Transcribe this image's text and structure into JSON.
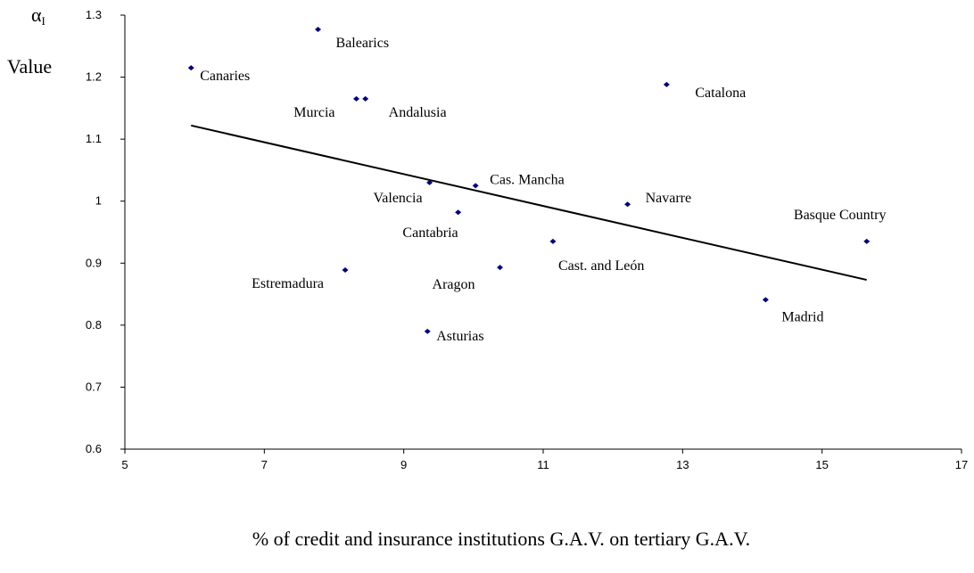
{
  "chart_data": {
    "type": "scatter",
    "y_label_symbol": "α",
    "y_label_subscript": "I",
    "ylabel": "Value",
    "xlabel": "% of credit and insurance institutions G.A.V. on tertiary G.A.V.",
    "color": "#000080",
    "xlim": [
      5,
      17
    ],
    "xticks": [
      5,
      7,
      9,
      11,
      13,
      15,
      17
    ],
    "ylim": [
      0.6,
      1.3
    ],
    "yticks": [
      0.6,
      0.7,
      0.8,
      0.9,
      1,
      1.1,
      1.2,
      1.3
    ],
    "points": [
      {
        "label": "Canaries",
        "x": 5.95,
        "y": 1.215
      },
      {
        "label": "Balearics",
        "x": 7.77,
        "y": 1.277
      },
      {
        "label": "Murcia",
        "x": 8.32,
        "y": 1.165
      },
      {
        "label": "Andalusia",
        "x": 8.45,
        "y": 1.165
      },
      {
        "label": "Catalona",
        "x": 12.77,
        "y": 1.188
      },
      {
        "label": "Valencia",
        "x": 9.37,
        "y": 1.03
      },
      {
        "label": "Cas. Mancha",
        "x": 10.03,
        "y": 1.025
      },
      {
        "label": "Cantabria",
        "x": 9.78,
        "y": 0.982
      },
      {
        "label": "Navarre",
        "x": 12.21,
        "y": 0.995
      },
      {
        "label": "Basque Country",
        "x": 15.64,
        "y": 0.935
      },
      {
        "label": "Cast. and León",
        "x": 11.14,
        "y": 0.935
      },
      {
        "label": "Aragon",
        "x": 10.38,
        "y": 0.893
      },
      {
        "label": "Estremadura",
        "x": 8.16,
        "y": 0.889
      },
      {
        "label": "Madrid",
        "x": 14.19,
        "y": 0.841
      },
      {
        "label": "Asturias",
        "x": 9.34,
        "y": 0.79
      }
    ],
    "trendline": {
      "x": [
        5.95,
        15.64
      ],
      "y": [
        1.122,
        0.873
      ]
    }
  }
}
